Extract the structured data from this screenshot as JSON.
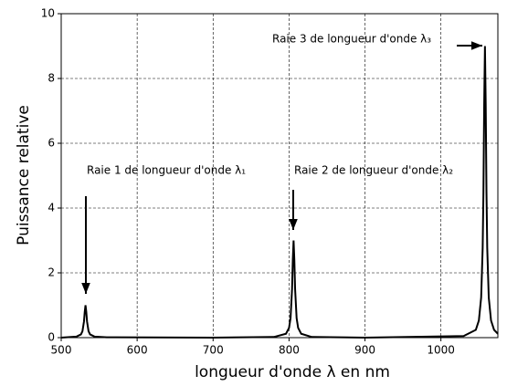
{
  "chart_data": {
    "type": "line",
    "xlabel": "longueur d'onde λ en nm",
    "ylabel": "Puissance relative",
    "annotations": [
      "Raie 1 de longueur d'onde λ₁",
      "Raie 2 de longueur d'onde λ₂",
      "Raie 3 de longueur d'onde λ₃"
    ],
    "x": [
      500,
      520,
      526,
      528,
      530,
      531,
      532,
      533,
      534,
      536,
      538,
      544,
      560,
      700,
      780,
      796,
      800,
      802,
      804,
      805,
      806,
      807,
      808,
      810,
      812,
      816,
      830,
      900,
      1030,
      1046,
      1050,
      1053,
      1055,
      1056,
      1057,
      1058,
      1059,
      1060,
      1061,
      1063,
      1066,
      1070,
      1075
    ],
    "series": [
      {
        "color": "#000000",
        "values": [
          0,
          0.03,
          0.1,
          0.2,
          0.5,
          0.8,
          1,
          0.8,
          0.5,
          0.2,
          0.1,
          0.03,
          0.01,
          0,
          0.02,
          0.12,
          0.3,
          0.6,
          1.5,
          2.4,
          3,
          2.4,
          1.5,
          0.6,
          0.3,
          0.12,
          0.02,
          0,
          0.05,
          0.24,
          0.53,
          1.24,
          2.77,
          4.5,
          7.2,
          9,
          7.2,
          4.5,
          2.77,
          1.24,
          0.53,
          0.24,
          0.12
        ]
      }
    ],
    "xlim": [
      500,
      1075
    ],
    "ylim": [
      0,
      10
    ],
    "xticks": [
      500,
      600,
      700,
      800,
      900,
      1000
    ],
    "yticks": [
      0,
      2,
      4,
      6,
      8,
      10
    ],
    "grid": true
  }
}
